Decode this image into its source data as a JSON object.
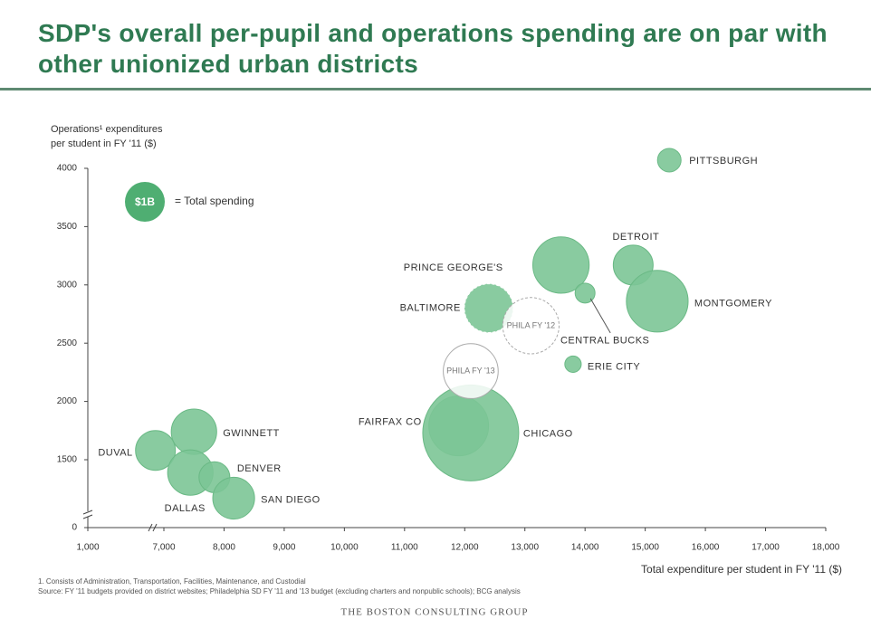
{
  "chart_data": {
    "type": "bubble",
    "title": "SDP's overall per-pupil and operations spending are on par with other unionized urban districts",
    "ylabel": [
      "Operations¹ expenditures",
      "per student in FY '11 ($)"
    ],
    "xlabel": "Total expenditure per student in FY '11 ($)",
    "legend": {
      "label": "$1B",
      "size": 1,
      "text": "= Total spending"
    },
    "axis_break": true,
    "xlim": [
      1000,
      18000
    ],
    "xticks": [
      {
        "value": 1000,
        "label": "1,000"
      },
      {
        "value": 7000,
        "label": "7,000"
      },
      {
        "value": 8000,
        "label": "8,000"
      },
      {
        "value": 9000,
        "label": "9,000"
      },
      {
        "value": 10000,
        "label": "10,000"
      },
      {
        "value": 11000,
        "label": "11,000"
      },
      {
        "value": 12000,
        "label": "12,000"
      },
      {
        "value": 13000,
        "label": "13,000"
      },
      {
        "value": 14000,
        "label": "14,000"
      },
      {
        "value": 15000,
        "label": "15,000"
      },
      {
        "value": 16000,
        "label": "16,000"
      },
      {
        "value": 17000,
        "label": "17,000"
      },
      {
        "value": 18000,
        "label": "18,000"
      }
    ],
    "ylim": [
      0,
      4000
    ],
    "yticks": [
      0,
      1500,
      2000,
      2500,
      3000,
      3500,
      4000
    ],
    "color": "#7cc596",
    "points": [
      {
        "label": "PITTSBURGH",
        "x": 15400,
        "y": 4070,
        "size": 0.35,
        "style": "filled"
      },
      {
        "label": "DETROIT",
        "x": 14800,
        "y": 3170,
        "size": 1.0,
        "style": "filled"
      },
      {
        "label": "MONTGOMERY",
        "x": 15200,
        "y": 2860,
        "size": 2.4,
        "style": "filled"
      },
      {
        "label": "PRINCE GEORGE'S",
        "x": 13600,
        "y": 3170,
        "size": 2.0,
        "style": "filled"
      },
      {
        "label": "CENTRAL BUCKS",
        "x": 14000,
        "y": 2930,
        "size": 0.25,
        "style": "filled"
      },
      {
        "label": "BALTIMORE",
        "x": 12400,
        "y": 2800,
        "size": 1.5,
        "style": "dashed"
      },
      {
        "label": "PHILA FY '12",
        "x": 13100,
        "y": 2650,
        "size": 2.0,
        "style": "outline-dashed"
      },
      {
        "label": "ERIE CITY",
        "x": 13800,
        "y": 2320,
        "size": 0.17,
        "style": "filled"
      },
      {
        "label": "FAIRFAX CO",
        "x": 11900,
        "y": 1790,
        "size": 2.25,
        "style": "filled"
      },
      {
        "label": "CHICAGO",
        "x": 12100,
        "y": 1730,
        "size": 5.8,
        "style": "filled"
      },
      {
        "label": "PHILA FY '13",
        "x": 12100,
        "y": 2260,
        "size": 1.9,
        "style": "outline"
      },
      {
        "label": "GWINNETT",
        "x": 7500,
        "y": 1740,
        "size": 1.3,
        "style": "filled"
      },
      {
        "label": "DUVAL",
        "x": 6860,
        "y": 1580,
        "size": 1.0,
        "style": "filled"
      },
      {
        "label": "DALLAS",
        "x": 7440,
        "y": 1390,
        "size": 1.3,
        "style": "filled"
      },
      {
        "label": "DENVER",
        "x": 7840,
        "y": 1350,
        "size": 0.6,
        "style": "filled"
      },
      {
        "label": "SAN DIEGO",
        "x": 8160,
        "y": 1170,
        "size": 1.1,
        "style": "filled"
      }
    ],
    "footnotes": [
      "1. Consists of Administration, Transportation, Facilities, Maintenance, and Custodial",
      "Source: FY '11 budgets provided on district websites; Philadelphia SD FY '11 and '13 budget (excluding charters and nonpublic schools); BCG analysis"
    ],
    "logo": "THE BOSTON CONSULTING GROUP"
  }
}
